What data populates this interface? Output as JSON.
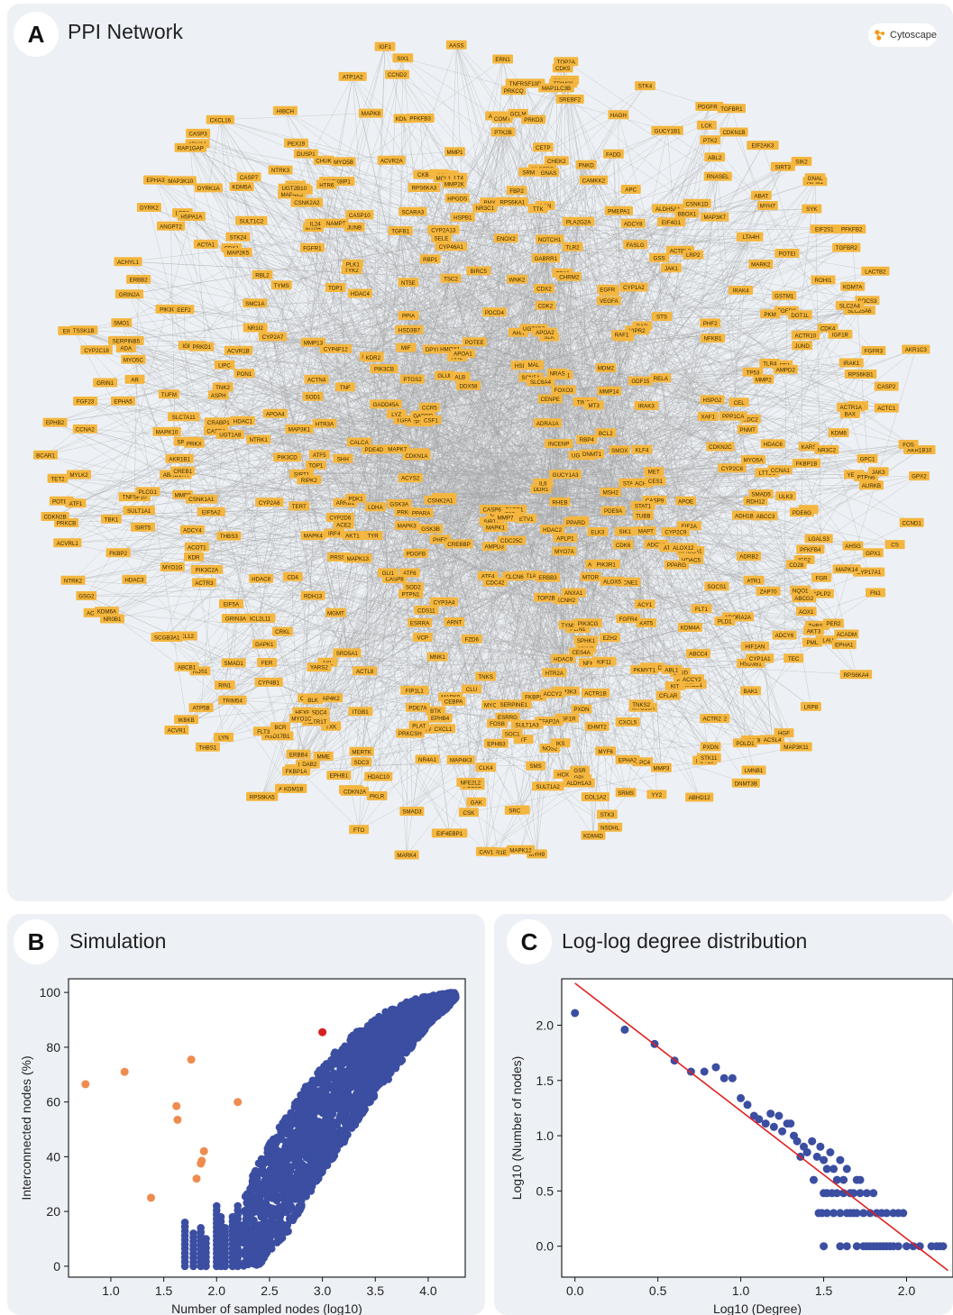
{
  "colors": {
    "node": "#f4b63f",
    "edge": "#a3a3a3",
    "blue": "#3b4ea1",
    "orange": "#ee8c4f",
    "red": "#d62020",
    "fit": "#e02020"
  },
  "panel_a": {
    "letter": "A",
    "title": "PPI Network",
    "app_label": "Cytoscape",
    "app_icon": "cytoscape-logo-icon"
  },
  "panel_b": {
    "letter": "B",
    "title": "Simulation"
  },
  "panel_c": {
    "letter": "C",
    "title": "Log-log degree distribution"
  },
  "network_labels": {
    "outer": [
      "AKR1B10",
      "ULK3",
      "FGR",
      "GPX1",
      "AOX1",
      "THBS2",
      "ADORA2A",
      "PER2",
      "FLT1",
      "HSD3B1",
      "HSD3B2",
      "ADCY6",
      "PXDN",
      "ACOT2",
      "ABHD12",
      "KIRDL1",
      "CXCL5",
      "CXCL8",
      "MYO15A",
      "CSF2",
      "NSDHL",
      "TNKS2",
      "GSR",
      "CSF1R",
      "MYO1F",
      "NOS2",
      "HTR1E",
      "FOSB",
      "EPHB3",
      "CLK4",
      "PDE9B",
      "DFFA",
      "MERTK",
      "EPHB1",
      "SDC3",
      "HAGHL",
      "HEXB",
      "MAP4K2",
      "SDC4",
      "TXK",
      "THBS1",
      "ALDH1A1",
      "ACTR1T",
      "AXL",
      "EIF5A",
      "BCL2L11",
      "ROS1",
      "ACVR1",
      "ACTR3B",
      "GSG2",
      "KDR",
      "GRIN3A",
      "HDAC8",
      "ADCY4",
      "SULT1A1",
      "MMP9",
      "AKR1B1",
      "PRKCB",
      "SIRT5",
      "ACVRL1",
      "EPHB2",
      "POTEF",
      "BCAR1",
      "GRIN1",
      "SLC7A11",
      "EPHA5",
      "FGF23",
      "GRIN2A",
      "ACVR1B",
      "EIF2AK2",
      "SMO1",
      "TYMS",
      "MAP3K10",
      "ADH1A",
      "SULT1C2",
      "ANGPT2",
      "MAP4K5",
      "STK24",
      "DUSP1",
      "CASP7",
      "MAPK8IP1",
      "MYO5B",
      "CSNK2A2",
      "IGF1",
      "ATP1A2",
      "GC",
      "RPS6KA3",
      "KDMC",
      "AASS",
      "SCN3A",
      "FLT4",
      "AHCYL2",
      "COMT",
      "CETP",
      "GRN",
      "GCLM",
      "TNFRSF10B",
      "PDGFRB",
      "FADD",
      "PRKAA2",
      "PDGFRA",
      "ABL2",
      "GSS",
      "RNASEL",
      "EIF2AK3",
      "PMEPA1",
      "ADCY8",
      "FASLG",
      "AIFM1",
      "ACTBL2",
      "ABAT",
      "STRA8",
      "ACTR10",
      "KDM7A",
      "GSTM1",
      "IRAK4",
      "AKR1C3",
      "LACTB2",
      "MMP2",
      "IGF1R",
      "TP53",
      "RPS6KB1",
      "KDM6",
      "SMAD5",
      "KARS",
      "SDC2",
      "LTTD1",
      "GPX2",
      "CYP17A1",
      "CS",
      "ACADM",
      "APLP2",
      "IGF2",
      "ABCG2",
      "PLAU",
      "TEC",
      "LRP8",
      "MAP3K11",
      "CYP1A1",
      "DNMT3B",
      "KDM4A",
      "HGF",
      "POTEJ",
      "YY2",
      "CTSD",
      "ACTR1B",
      "STK3",
      "SRMS",
      "MYF6",
      "SULT1A2",
      "TF",
      "SMS",
      "TFAP2A",
      "SOC1",
      "EIF4EBP1",
      "BID",
      "BTK",
      "CAV1",
      "ESRRG",
      "MAPK9",
      "FTO",
      "CXCL1",
      "PTGS1",
      "PDE7A",
      "ACTL8",
      "HSD17B1",
      "YARS2",
      "FKBP1A",
      "RIN1",
      "LYN",
      "ATP5B",
      "CRKL",
      "FLT3",
      "TRIM54",
      "DAPK1",
      "TERT",
      "PIK3C2A",
      "THBS3",
      "MYO1G",
      "FKBP2",
      "EIF5A2",
      "TNFSF10",
      "PLCG1",
      "MYLK2",
      "TET2",
      "SPTAN1",
      "PRKX",
      "CDKN2B",
      "ASPH",
      "ABHD17A",
      "TSSK1B",
      "IGFBP1",
      "CRABP1",
      "MYO5C",
      "TUFM",
      "PRKD1",
      "TNK2",
      "SERPINB5",
      "ACHYL1",
      "ACTA1",
      "CDK1",
      "EPHA3",
      "RAP1GAP",
      "KDM5A",
      "MYH4",
      "LRP1",
      "PTEN",
      "XAB2",
      "NAMPT",
      "FGFR1",
      "HTR6",
      "PEX19",
      "JUNB",
      "HIBCH",
      "HPGDS",
      "MMP1",
      "SIX1",
      "BMX",
      "SRM",
      "PTK2B",
      "MCL1",
      "TRIM28",
      "ERN1",
      "PNKD",
      "CHEK2",
      "TOP2A",
      "GUCY1B1",
      "STK4",
      "LCK",
      "TGFBR1",
      "ALDH5A1",
      "BBOX1",
      "LRP2",
      "MYH7",
      "LTA4H",
      "SYK",
      "EIF4G1",
      "JAK1",
      "EIF2S1",
      "TGFBR2",
      "SOCS3",
      "POTEI",
      "FGFR2",
      "SLC25A6",
      "JUND",
      "WEE1",
      "CASP2",
      "AMPD2",
      "BAX",
      "YES1",
      "YARS",
      "GPC1",
      "CCNA1",
      "HDAC6",
      "PTPN6",
      "MAPK14",
      "RET",
      "ABCC3",
      "RDH12",
      "CD28",
      "AHSG",
      "NQO1",
      "FN1",
      "ZAP70",
      "ATR1",
      "PLD1",
      "BAK1",
      "POLD1",
      "ACSL4",
      "MYO1D",
      "STK11",
      "GPC4",
      "EHMT2",
      "MAP3K3",
      "CFLAR",
      "KDM4D",
      "GPI",
      "EPHA2",
      "SULT1A3",
      "SRC",
      "MYH9",
      "FKBP5",
      "NFE2L2",
      "CSK",
      "CEBPA",
      "MARK4",
      "PKLR",
      "PLAT",
      "HDAC10",
      "FIP1L1",
      "MTDH",
      "CEBPB",
      "RPS6KA5",
      "ERBB4",
      "ITGB1",
      "MYO1C",
      "MME",
      "IKBKB",
      "BLK",
      "SMAD1",
      "FER",
      "CYP4B1",
      "ABCB1",
      "CXCL12",
      "SCGB3A1",
      "NTRK2",
      "NR0B1",
      "TBK1",
      "HDAC3",
      "ACTR3",
      "KDM6A",
      "ACOT1",
      "CREB1",
      "CSNK1A1",
      "MAPK10",
      "CCNA2",
      "ATF1",
      "CYP2C18",
      "LIPC",
      "CASP4",
      "PIK3CA",
      "AR",
      "ERBB2",
      "NR1I2",
      "ADA",
      "SMC1A",
      "EEF2",
      "HSPA1A",
      "RBL2",
      "CASP3",
      "DYRK1A",
      "DYRK2",
      "MAP2K5",
      "UGT2B10",
      "CXCL16",
      "NTRK3",
      "CASP10",
      "IL24",
      "ACVR2A",
      "PFKFB3",
      "CHUK",
      "SCARA3",
      "CCND2",
      "CKB",
      "MAPK8",
      "MMP2K",
      "RPS6KA1",
      "MAP1LC3B",
      "SREBF2",
      "CDK5",
      "PRKCQ",
      "TTK",
      "FBP2",
      "PRKD3",
      "GNAS",
      "HAGH",
      "CAMKK2",
      "PTK2",
      "CDKN1B",
      "APC",
      "CSNK1D",
      "MAP3K7",
      "SIRT3",
      "MARK2",
      "SIK2",
      "PFKFB2",
      "GNAL",
      "SLC2A4",
      "ROHI1",
      "TLR4",
      "DOT1L",
      "FGFR3",
      "IRAK1",
      "PKM",
      "ACTR1A",
      "CDK4",
      "MYO5A",
      "AURKB",
      "FOS",
      "CCND1",
      "ACTC1",
      "JAK3",
      "NR3C2",
      "FKBP1B",
      "PDE6G",
      "ADH1B",
      "PFKFB4",
      "EPHA1",
      "LGALS3",
      "AKT3",
      "ADRB2",
      "SOCS1",
      "PML",
      "RPS6KA4",
      "ACTR2",
      "HIF1AN",
      "KIT",
      "ACCY2",
      "ABL1",
      "ABCC4",
      "MMP3",
      "LMNB1",
      "PKMYT1",
      "COL1A2",
      "ALDH1A3",
      "SERPINE1",
      "PXDN",
      "IKS",
      "ACCY2",
      "HCK",
      "EPHB4",
      "GAK",
      "MAPK12",
      "SMAD3",
      "CDKN2A",
      "MAP4K3",
      "PRKCSH",
      "NR4A1",
      "DAB2",
      "KDM1B",
      "BCR"
    ],
    "inner": [
      "SMOX",
      "ADCY3",
      "MAGEA1",
      "EIF2A",
      "TUBB",
      "CASP9",
      "STAT1",
      "ELK3",
      "SIK1",
      "CDK6",
      "DDR1",
      "ANXA1",
      "MYH8",
      "PLIN1",
      "UGT1A1",
      "CLCN6",
      "PARP1",
      "ETV1",
      "KCNH2",
      "AMPD3",
      "ERG",
      "CLU",
      "MNK1",
      "VCP",
      "ARNT",
      "ATF4",
      "CYP3A4",
      "CDS11",
      "SOD2",
      "PDGFB",
      "HIF1A",
      "ESRRA",
      "PRKCZ",
      "PHF8",
      "ATF6",
      "PRSS1",
      "RDH13",
      "MGMT",
      "ARRB1",
      "GSK3A",
      "ACYS2",
      "MAPK4",
      "IRF4",
      "RARB",
      "PDE4D",
      "CDKN1A",
      "MAP3K1",
      "SIRT1",
      "ATF5",
      "UGT1A8",
      "PON1",
      "ATP1A1",
      "HTR3A",
      "TGFA",
      "GADD45A",
      "ACTN4",
      "PIK3CB",
      "LYZ",
      "GABRD",
      "HDAC4",
      "TDP1",
      "CYP4F12",
      "GLUL",
      "MIF",
      "NT5E",
      "DDX58",
      "TYK2",
      "TSC2",
      "PPIA",
      "RBP1",
      "POTEE",
      "ALB",
      "HSPB1",
      "ENOX2",
      "NOTCH1",
      "AHR",
      "GABRR1",
      "CDK2",
      "TP63",
      "HSD11B2",
      "MYC",
      "UGT2B7",
      "TLR2",
      "SLK",
      "BAD",
      "CENPE",
      "STS",
      "EGFR",
      "FOXO3",
      "FOXO1",
      "PHF2",
      "RELA",
      "MDM2",
      "NFKB1",
      "TIMP1",
      "BCL2",
      "UGT1A3",
      "HSPG2",
      "PNMT",
      "INCENP",
      "STAT3",
      "CYP2C8",
      "APOE",
      "MSH2",
      "ATM",
      "MET",
      "ACHE",
      "CYP2C9",
      "IL6",
      "KAT5",
      "ADORA1",
      "PIK3R1",
      "FGFR4",
      "CCNE1",
      "TYMS",
      "SPHK1",
      "CES4A",
      "MTOR",
      "NFKBIA",
      "PIK3CG",
      "TOP2B",
      "CYP2C19",
      "SIRT2",
      "MAPK1",
      "CDC25C",
      "FZD6",
      "CREBBP",
      "CDC42",
      "TNKS",
      "PTPN1",
      "SRD5A1",
      "GSK3B",
      "CASP8",
      "MAPK3",
      "PPARA",
      "TYR",
      "CSNK2A1",
      "GLI1",
      "CD4",
      "MAPK13",
      "CYP2D6",
      "TERT",
      "ACE2",
      "LDHA",
      "AKT1",
      "PDK1",
      "TOP1",
      "MAPK7",
      "CYP2A6",
      "RIPK2",
      "PIK3CD",
      "CALCA",
      "SHH",
      "APOA4",
      "NTRK1",
      "HDAC1",
      "SOD1",
      "TNF",
      "CSF1",
      "CYP2A7",
      "MMP13",
      "CCR5",
      "ROCK2",
      "HSD3B7",
      "PTGS2",
      "KDR2",
      "DPYD",
      "AR2",
      "PLK1",
      "TGFB1",
      "CYP2A13",
      "HMOX1",
      "APOA1",
      "BIRC5",
      "CYP46A1",
      "NR3C1",
      "SELE",
      "WNK2",
      "PDCD4",
      "PLA2G2A",
      "CDX2",
      "MAL",
      "APOA2",
      "VEGFA",
      "NRAS",
      "CYP1A2",
      "CHRM2",
      "VIPR2",
      "SCN5A",
      "RHOA",
      "SLC6A4",
      "GDF15",
      "RAF1",
      "ADRA1A",
      "MT3",
      "MMP14",
      "IRAK3",
      "RBP4",
      "KLF4",
      "PPP1CA",
      "CDKN2C",
      "CEL",
      "XAF1",
      "DNMT1",
      "CES1",
      "GUCY1A3",
      "PDE9A",
      "ALOX12",
      "MAPT",
      "RHEB",
      "HDAC5",
      "LCN2",
      "PPARG",
      "PPARD",
      "ALOX5",
      "APLP1",
      "KIF11",
      "ACY1",
      "HDAC9",
      "HDAC2",
      "MYO7A",
      "HTR2A",
      "EZH2",
      "MMP7",
      "ERBB3",
      "CASP6"
    ]
  },
  "chart_b": {
    "type": "scatter",
    "xlabel": "Number of sampled nodes (log10)",
    "ylabel": "Interconnected nodes (%)",
    "xlim": [
      0.6,
      4.35
    ],
    "ylim": [
      -4,
      105
    ],
    "xticks": [
      "1.0",
      "1.5",
      "2.0",
      "2.5",
      "3.0",
      "3.5",
      "4.0"
    ],
    "yticks": [
      "0",
      "20",
      "40",
      "60",
      "80",
      "100"
    ],
    "series": [
      {
        "color": "orange",
        "points": [
          [
            0.76,
            66.5
          ],
          [
            1.13,
            71
          ],
          [
            1.38,
            25
          ],
          [
            1.62,
            58.5
          ],
          [
            1.63,
            53.5
          ],
          [
            1.76,
            75.5
          ],
          [
            1.81,
            32
          ],
          [
            1.85,
            37.5
          ],
          [
            1.86,
            38.5
          ],
          [
            1.88,
            42
          ],
          [
            2.2,
            60
          ]
        ]
      },
      {
        "color": "red",
        "points": [
          [
            3.0,
            85.5
          ]
        ]
      }
    ],
    "bulk": {
      "color": "blue",
      "columns": [
        {
          "x": 1.7,
          "lo": 0,
          "hi": 16
        },
        {
          "x": 1.78,
          "lo": 0,
          "hi": 12
        },
        {
          "x": 1.85,
          "lo": 0,
          "hi": 14
        },
        {
          "x": 1.9,
          "lo": 0,
          "hi": 10
        },
        {
          "x": 2.0,
          "lo": 0,
          "hi": 22
        },
        {
          "x": 2.04,
          "lo": 0,
          "hi": 18
        },
        {
          "x": 2.08,
          "lo": 0,
          "hi": 14
        },
        {
          "x": 2.15,
          "lo": 0,
          "hi": 18
        },
        {
          "x": 2.2,
          "lo": 0,
          "hi": 22
        }
      ],
      "envelope": [
        [
          2.25,
          0,
          24
        ],
        [
          2.35,
          0,
          34
        ],
        [
          2.45,
          1,
          42
        ],
        [
          2.55,
          5,
          48
        ],
        [
          2.7,
          14,
          58
        ],
        [
          2.85,
          25,
          66
        ],
        [
          3.0,
          34,
          73
        ],
        [
          3.15,
          42,
          80
        ],
        [
          3.3,
          51,
          85
        ],
        [
          3.45,
          60,
          89
        ],
        [
          3.6,
          67,
          93
        ],
        [
          3.75,
          75,
          96
        ],
        [
          3.9,
          83,
          98
        ],
        [
          4.05,
          90,
          99
        ],
        [
          4.2,
          95,
          100
        ],
        [
          4.26,
          98,
          100
        ]
      ]
    }
  },
  "chart_c": {
    "type": "scatter",
    "xlabel": "Log10 (Degree)",
    "ylabel": "Log10 (Number of nodes)",
    "xlim": [
      -0.08,
      2.28
    ],
    "ylim": [
      -0.28,
      2.42
    ],
    "xticks": [
      "0.0",
      "0.5",
      "1.0",
      "1.5",
      "2.0"
    ],
    "yticks": [
      "0.0",
      "0.5",
      "1.0",
      "1.5",
      "2.0"
    ],
    "points": [
      [
        0.0,
        2.11
      ],
      [
        0.3,
        1.96
      ],
      [
        0.48,
        1.83
      ],
      [
        0.6,
        1.68
      ],
      [
        0.7,
        1.58
      ],
      [
        0.78,
        1.58
      ],
      [
        0.85,
        1.62
      ],
      [
        0.9,
        1.52
      ],
      [
        0.95,
        1.52
      ],
      [
        1.0,
        1.34
      ],
      [
        1.04,
        1.28
      ],
      [
        1.08,
        1.18
      ],
      [
        1.11,
        1.15
      ],
      [
        1.15,
        1.11
      ],
      [
        1.18,
        1.2
      ],
      [
        1.2,
        1.08
      ],
      [
        1.23,
        1.18
      ],
      [
        1.25,
        1.04
      ],
      [
        1.28,
        1.11
      ],
      [
        1.3,
        1.11
      ],
      [
        1.32,
        1.0
      ],
      [
        1.34,
        0.95
      ],
      [
        1.36,
        0.81
      ],
      [
        1.38,
        0.9
      ],
      [
        1.4,
        0.85
      ],
      [
        1.43,
        0.95
      ],
      [
        1.46,
        0.81
      ],
      [
        1.48,
        0.9
      ],
      [
        1.5,
        0.78
      ],
      [
        1.52,
        0.7
      ],
      [
        1.54,
        0.85
      ],
      [
        1.56,
        0.7
      ],
      [
        1.58,
        0.6
      ],
      [
        1.6,
        0.78
      ],
      [
        1.62,
        0.6
      ],
      [
        1.64,
        0.7
      ],
      [
        1.66,
        0.48
      ],
      [
        1.68,
        0.48
      ],
      [
        1.7,
        0.6
      ],
      [
        1.72,
        0.6
      ],
      [
        1.74,
        0.3
      ],
      [
        1.76,
        0.48
      ],
      [
        1.78,
        0.3
      ],
      [
        1.8,
        0.48
      ],
      [
        1.82,
        0.3
      ],
      [
        1.85,
        0.3
      ],
      [
        1.88,
        0.3
      ],
      [
        1.92,
        0.3
      ],
      [
        1.95,
        0.3
      ],
      [
        1.98,
        0.3
      ],
      [
        1.5,
        0.48
      ],
      [
        1.52,
        0.48
      ],
      [
        1.55,
        0.48
      ],
      [
        1.58,
        0.48
      ],
      [
        1.62,
        0.48
      ],
      [
        1.64,
        0.3
      ],
      [
        1.66,
        0.3
      ],
      [
        1.68,
        0.3
      ],
      [
        1.7,
        0.3
      ],
      [
        1.72,
        0.48
      ],
      [
        1.56,
        0.3
      ],
      [
        1.44,
        0.6
      ],
      [
        1.47,
        0.3
      ],
      [
        1.49,
        0.3
      ],
      [
        1.52,
        0.3
      ],
      [
        1.6,
        0.3
      ],
      [
        1.6,
        0.0
      ],
      [
        1.7,
        0.0
      ],
      [
        1.74,
        0.0
      ],
      [
        1.76,
        0.0
      ],
      [
        1.78,
        0.0
      ],
      [
        1.8,
        0.0
      ],
      [
        1.82,
        0.0
      ],
      [
        1.84,
        0.0
      ],
      [
        1.86,
        0.0
      ],
      [
        1.88,
        0.0
      ],
      [
        1.9,
        0.0
      ],
      [
        1.92,
        0.0
      ],
      [
        1.95,
        0.0
      ],
      [
        2.0,
        0.0
      ],
      [
        2.04,
        0.0
      ],
      [
        2.08,
        0.0
      ],
      [
        2.15,
        0.0
      ],
      [
        2.18,
        0.0
      ],
      [
        2.2,
        0.0
      ],
      [
        2.22,
        0.0
      ],
      [
        1.5,
        0.0
      ],
      [
        1.64,
        0.0
      ]
    ],
    "fit_line": [
      [
        0.0,
        2.38
      ],
      [
        2.25,
        -0.22
      ]
    ]
  }
}
